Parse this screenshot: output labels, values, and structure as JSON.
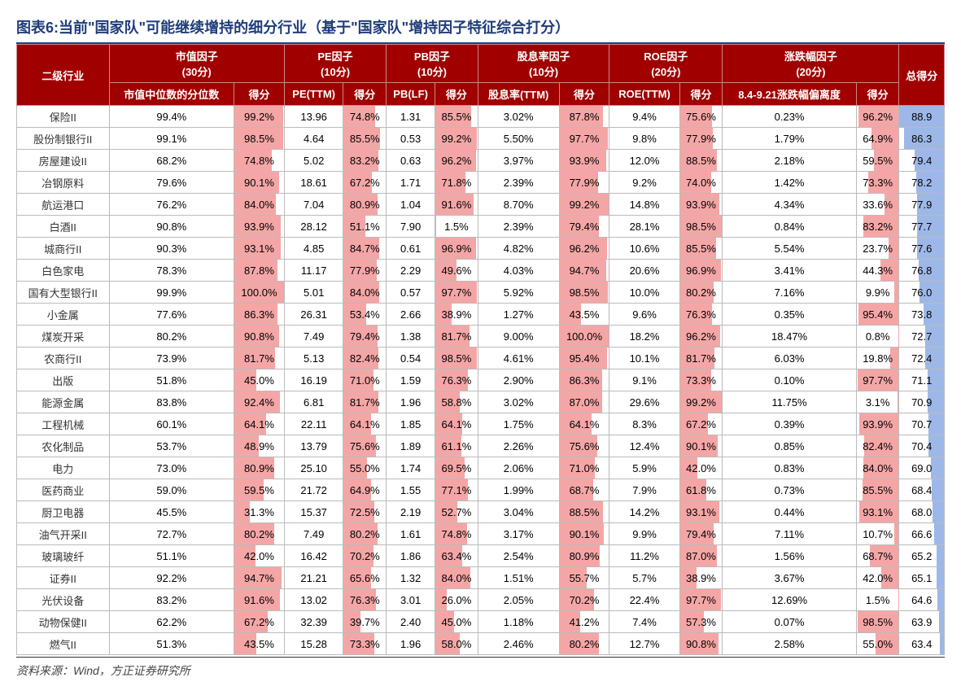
{
  "title": "图表6:当前\"国家队\"可能继续增持的细分行业（基于\"国家队\"增持因子特征综合打分）",
  "source": "资料来源：Wind，方正证券研究所",
  "colors": {
    "header_bg": "#a00000",
    "header_fg": "#ffffff",
    "score_bar": "#f4a6a6",
    "total_bar": "#9db8e8",
    "border": "#bbbbbb",
    "title_color": "#1f3d7a"
  },
  "header_top": {
    "industry": "二级行业",
    "mktcap": "市值因子\n(30分)",
    "pe": "PE因子\n(10分)",
    "pb": "PB因子\n(10分)",
    "div": "股息率因子\n(10分)",
    "roe": "ROE因子\n(20分)",
    "dd": "涨跌幅因子\n(20分)",
    "total": "总得分"
  },
  "header_sub": {
    "mktcap_val": "市值中位数的分位数",
    "score": "得分",
    "pe_val": "PE(TTM)",
    "pb_val": "PB(LF)",
    "div_val": "股息率(TTM)",
    "roe_val": "ROE(TTM)",
    "dd_val": "8.4-9.21涨跌幅偏离度"
  },
  "rows": [
    {
      "industry": "保险II",
      "mc_v": "99.4%",
      "mc_s": 99.2,
      "pe_v": "13.96",
      "pe_s": 74.8,
      "pb_v": "1.31",
      "pb_s": 85.5,
      "dv_v": "3.02%",
      "dv_s": 87.8,
      "roe_v": "9.4%",
      "roe_s": 75.6,
      "dd_v": "0.23%",
      "dd_s": 96.2,
      "total": 88.9
    },
    {
      "industry": "股份制银行II",
      "mc_v": "99.1%",
      "mc_s": 98.5,
      "pe_v": "4.64",
      "pe_s": 85.5,
      "pb_v": "0.53",
      "pb_s": 99.2,
      "dv_v": "5.50%",
      "dv_s": 97.7,
      "roe_v": "9.8%",
      "roe_s": 77.9,
      "dd_v": "1.79%",
      "dd_s": 64.9,
      "total": 86.3
    },
    {
      "industry": "房屋建设II",
      "mc_v": "68.2%",
      "mc_s": 74.8,
      "pe_v": "5.02",
      "pe_s": 83.2,
      "pb_v": "0.63",
      "pb_s": 96.2,
      "dv_v": "3.97%",
      "dv_s": 93.9,
      "roe_v": "12.0%",
      "roe_s": 88.5,
      "dd_v": "2.18%",
      "dd_s": 59.5,
      "total": 79.4
    },
    {
      "industry": "冶钢原料",
      "mc_v": "79.6%",
      "mc_s": 90.1,
      "pe_v": "18.61",
      "pe_s": 67.2,
      "pb_v": "1.71",
      "pb_s": 71.8,
      "dv_v": "2.39%",
      "dv_s": 77.9,
      "roe_v": "9.2%",
      "roe_s": 74.0,
      "dd_v": "1.42%",
      "dd_s": 73.3,
      "total": 78.2
    },
    {
      "industry": "航运港口",
      "mc_v": "76.2%",
      "mc_s": 84.0,
      "pe_v": "7.04",
      "pe_s": 80.9,
      "pb_v": "1.04",
      "pb_s": 91.6,
      "dv_v": "8.70%",
      "dv_s": 99.2,
      "roe_v": "14.8%",
      "roe_s": 93.9,
      "dd_v": "4.34%",
      "dd_s": 33.6,
      "total": 77.9
    },
    {
      "industry": "白酒II",
      "mc_v": "90.8%",
      "mc_s": 93.9,
      "pe_v": "28.12",
      "pe_s": 51.1,
      "pb_v": "7.90",
      "pb_s": 1.5,
      "dv_v": "2.39%",
      "dv_s": 79.4,
      "roe_v": "28.1%",
      "roe_s": 98.5,
      "dd_v": "0.84%",
      "dd_s": 83.2,
      "total": 77.7
    },
    {
      "industry": "城商行II",
      "mc_v": "90.3%",
      "mc_s": 93.1,
      "pe_v": "4.85",
      "pe_s": 84.7,
      "pb_v": "0.61",
      "pb_s": 96.9,
      "dv_v": "4.82%",
      "dv_s": 96.2,
      "roe_v": "10.6%",
      "roe_s": 85.5,
      "dd_v": "5.54%",
      "dd_s": 23.7,
      "total": 77.6
    },
    {
      "industry": "白色家电",
      "mc_v": "78.3%",
      "mc_s": 87.8,
      "pe_v": "11.17",
      "pe_s": 77.9,
      "pb_v": "2.29",
      "pb_s": 49.6,
      "dv_v": "4.03%",
      "dv_s": 94.7,
      "roe_v": "20.6%",
      "roe_s": 96.9,
      "dd_v": "3.41%",
      "dd_s": 44.3,
      "total": 76.8
    },
    {
      "industry": "国有大型银行II",
      "mc_v": "99.9%",
      "mc_s": 100.0,
      "pe_v": "5.01",
      "pe_s": 84.0,
      "pb_v": "0.57",
      "pb_s": 97.7,
      "dv_v": "5.92%",
      "dv_s": 98.5,
      "roe_v": "10.0%",
      "roe_s": 80.2,
      "dd_v": "7.16%",
      "dd_s": 9.9,
      "total": 76.0
    },
    {
      "industry": "小金属",
      "mc_v": "77.6%",
      "mc_s": 86.3,
      "pe_v": "26.31",
      "pe_s": 53.4,
      "pb_v": "2.66",
      "pb_s": 38.9,
      "dv_v": "1.27%",
      "dv_s": 43.5,
      "roe_v": "9.6%",
      "roe_s": 76.3,
      "dd_v": "0.35%",
      "dd_s": 95.4,
      "total": 73.8
    },
    {
      "industry": "煤炭开采",
      "mc_v": "80.2%",
      "mc_s": 90.8,
      "pe_v": "7.49",
      "pe_s": 79.4,
      "pb_v": "1.38",
      "pb_s": 81.7,
      "dv_v": "9.00%",
      "dv_s": 100.0,
      "roe_v": "18.2%",
      "roe_s": 96.2,
      "dd_v": "18.47%",
      "dd_s": 0.8,
      "total": 72.7
    },
    {
      "industry": "农商行II",
      "mc_v": "73.9%",
      "mc_s": 81.7,
      "pe_v": "5.13",
      "pe_s": 82.4,
      "pb_v": "0.54",
      "pb_s": 98.5,
      "dv_v": "4.61%",
      "dv_s": 95.4,
      "roe_v": "10.1%",
      "roe_s": 81.7,
      "dd_v": "6.03%",
      "dd_s": 19.8,
      "total": 72.4
    },
    {
      "industry": "出版",
      "mc_v": "51.8%",
      "mc_s": 45.0,
      "pe_v": "16.19",
      "pe_s": 71.0,
      "pb_v": "1.59",
      "pb_s": 76.3,
      "dv_v": "2.90%",
      "dv_s": 86.3,
      "roe_v": "9.1%",
      "roe_s": 73.3,
      "dd_v": "0.10%",
      "dd_s": 97.7,
      "total": 71.1
    },
    {
      "industry": "能源金属",
      "mc_v": "83.8%",
      "mc_s": 92.4,
      "pe_v": "6.81",
      "pe_s": 81.7,
      "pb_v": "1.96",
      "pb_s": 58.8,
      "dv_v": "3.02%",
      "dv_s": 87.0,
      "roe_v": "29.6%",
      "roe_s": 99.2,
      "dd_v": "11.75%",
      "dd_s": 3.1,
      "total": 70.9
    },
    {
      "industry": "工程机械",
      "mc_v": "60.1%",
      "mc_s": 64.1,
      "pe_v": "22.11",
      "pe_s": 64.1,
      "pb_v": "1.85",
      "pb_s": 64.1,
      "dv_v": "1.75%",
      "dv_s": 64.1,
      "roe_v": "8.3%",
      "roe_s": 67.2,
      "dd_v": "0.39%",
      "dd_s": 93.9,
      "total": 70.7
    },
    {
      "industry": "农化制品",
      "mc_v": "53.7%",
      "mc_s": 48.9,
      "pe_v": "13.79",
      "pe_s": 75.6,
      "pb_v": "1.89",
      "pb_s": 61.1,
      "dv_v": "2.26%",
      "dv_s": 75.6,
      "roe_v": "12.4%",
      "roe_s": 90.1,
      "dd_v": "0.85%",
      "dd_s": 82.4,
      "total": 70.4
    },
    {
      "industry": "电力",
      "mc_v": "73.0%",
      "mc_s": 80.9,
      "pe_v": "25.10",
      "pe_s": 55.0,
      "pb_v": "1.74",
      "pb_s": 69.5,
      "dv_v": "2.06%",
      "dv_s": 71.0,
      "roe_v": "5.9%",
      "roe_s": 42.0,
      "dd_v": "0.83%",
      "dd_s": 84.0,
      "total": 69.0
    },
    {
      "industry": "医药商业",
      "mc_v": "59.0%",
      "mc_s": 59.5,
      "pe_v": "21.72",
      "pe_s": 64.9,
      "pb_v": "1.55",
      "pb_s": 77.1,
      "dv_v": "1.99%",
      "dv_s": 68.7,
      "roe_v": "7.9%",
      "roe_s": 61.8,
      "dd_v": "0.73%",
      "dd_s": 85.5,
      "total": 68.4
    },
    {
      "industry": "厨卫电器",
      "mc_v": "45.5%",
      "mc_s": 31.3,
      "pe_v": "15.37",
      "pe_s": 72.5,
      "pb_v": "2.19",
      "pb_s": 52.7,
      "dv_v": "3.04%",
      "dv_s": 88.5,
      "roe_v": "14.2%",
      "roe_s": 93.1,
      "dd_v": "0.44%",
      "dd_s": 93.1,
      "total": 68.0
    },
    {
      "industry": "油气开采II",
      "mc_v": "72.7%",
      "mc_s": 80.2,
      "pe_v": "7.49",
      "pe_s": 80.2,
      "pb_v": "1.61",
      "pb_s": 74.8,
      "dv_v": "3.17%",
      "dv_s": 90.1,
      "roe_v": "9.9%",
      "roe_s": 79.4,
      "dd_v": "7.11%",
      "dd_s": 10.7,
      "total": 66.6
    },
    {
      "industry": "玻璃玻纤",
      "mc_v": "51.1%",
      "mc_s": 42.0,
      "pe_v": "16.42",
      "pe_s": 70.2,
      "pb_v": "1.86",
      "pb_s": 63.4,
      "dv_v": "2.54%",
      "dv_s": 80.9,
      "roe_v": "11.2%",
      "roe_s": 87.0,
      "dd_v": "1.56%",
      "dd_s": 68.7,
      "total": 65.2
    },
    {
      "industry": "证券II",
      "mc_v": "92.2%",
      "mc_s": 94.7,
      "pe_v": "21.21",
      "pe_s": 65.6,
      "pb_v": "1.32",
      "pb_s": 84.0,
      "dv_v": "1.51%",
      "dv_s": 55.7,
      "roe_v": "5.7%",
      "roe_s": 38.9,
      "dd_v": "3.67%",
      "dd_s": 42.0,
      "total": 65.1
    },
    {
      "industry": "光伏设备",
      "mc_v": "83.2%",
      "mc_s": 91.6,
      "pe_v": "13.02",
      "pe_s": 76.3,
      "pb_v": "3.01",
      "pb_s": 26.0,
      "dv_v": "2.05%",
      "dv_s": 70.2,
      "roe_v": "22.4%",
      "roe_s": 97.7,
      "dd_v": "12.69%",
      "dd_s": 1.5,
      "total": 64.6
    },
    {
      "industry": "动物保健II",
      "mc_v": "62.2%",
      "mc_s": 67.2,
      "pe_v": "32.39",
      "pe_s": 39.7,
      "pb_v": "2.40",
      "pb_s": 45.0,
      "dv_v": "1.18%",
      "dv_s": 41.2,
      "roe_v": "7.4%",
      "roe_s": 57.3,
      "dd_v": "0.07%",
      "dd_s": 98.5,
      "total": 63.9
    },
    {
      "industry": "燃气II",
      "mc_v": "51.3%",
      "mc_s": 43.5,
      "pe_v": "15.28",
      "pe_s": 73.3,
      "pb_v": "1.96",
      "pb_s": 58.0,
      "dv_v": "2.46%",
      "dv_s": 80.2,
      "roe_v": "12.7%",
      "roe_s": 90.8,
      "dd_v": "2.58%",
      "dd_s": 55.0,
      "total": 63.4
    }
  ],
  "total_min": 63.4,
  "total_max": 88.9
}
